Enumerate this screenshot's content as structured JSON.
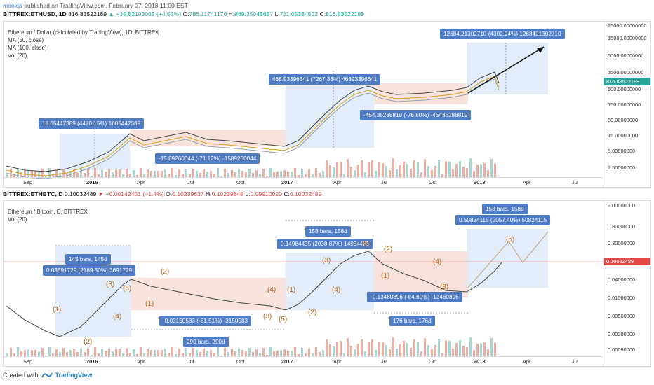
{
  "header": {
    "author": "monkia",
    "published_text": "published on TradingView.com, February 07, 2018 11:00 EST",
    "symbol": "BITTREX:ETHUSD, 1D",
    "last": "816.83522189",
    "change": "+35.52193069 (+4.55%)",
    "o_label": "O:",
    "o": "786.11741176",
    "h_label": "H:",
    "h": "869.25045687",
    "l_label": "L:",
    "l": "711.05384502",
    "c_label": "C:",
    "c": "816.83522189",
    "up_arrow": "▲"
  },
  "chart1": {
    "title": "Ethereum / Dollar (calculated by TradingView), 1D, BITTREX",
    "indicators": [
      "MA (50, close)",
      "MA (100, close)",
      "Vol (20)"
    ],
    "y_ticks": [
      "25000.00000000",
      "15000.00000000",
      "5000.00000000",
      "1500.00000000",
      "500.00000000",
      "150.00000000",
      "50.00000000",
      "15.00000000",
      "5.00000000",
      "1.50000000"
    ],
    "price_label": "816.83522189",
    "x_ticks": [
      "Sep",
      "2016",
      "Apr",
      "Jul",
      "Oct",
      "2017",
      "Apr",
      "Jul",
      "Oct",
      "2018",
      "Apr",
      "Jul"
    ],
    "annotations": [
      "12684.21302710 (4302.24%) 1268421302710",
      "468.93396641 (7267.33%) 46893396641",
      "-454.36288819 (-76.80%) -45436288819",
      "18.05447389 (4470.15%) 1805447389",
      "-15.89260044 (-71.12%) -1589260044"
    ],
    "colors": {
      "up_zone": "#dbe8f7",
      "down_zone": "#f5dcd3",
      "ma50": "#d4a017",
      "ma100": "#9aa0a6",
      "candle": "#555"
    }
  },
  "header2": {
    "symbol": "BITTREX:ETHBTC, D",
    "last": "0.10032489",
    "down_arrow": "▼",
    "change": "−0.00142451 (−1.4%)",
    "o_label": "O:",
    "o": "0.10239637",
    "h_label": "H:",
    "h": "0.10239848",
    "l_label": "L:",
    "l": "0.09910020",
    "c_label": "C:",
    "c": "0.10032489"
  },
  "chart2": {
    "title": "Ethereum / Bitcoin, D, BITTREX",
    "indicators": [
      "Vol (20)"
    ],
    "y_ticks": [
      "2.00000000",
      "0.80000000",
      "0.30000000",
      "0.10032489",
      "0.04000000",
      "0.01500000",
      "0.00500000",
      "0.00200000",
      "0.00080000"
    ],
    "price_label": "0.10032489",
    "x_ticks": [
      "Sep",
      "2016",
      "Apr",
      "Jul",
      "Oct",
      "2017",
      "Apr",
      "Jul",
      "Oct",
      "2018",
      "Apr",
      "Jul"
    ],
    "annotations": [
      "145 bars, 145d",
      "0.03691729 (2189.50%) 3691729",
      "-0.03150583 (-81.51%) -3150583",
      "290 bars, 290d",
      "158 bars, 158d",
      "0.14984435 (2038.87%) 14984435",
      "-0.13460896 (-84.60%) -13460896",
      "176 bars, 176d",
      "158 bars, 158d",
      "0.50824115 (2057.40%) 50824115"
    ],
    "waves": [
      "(1)",
      "(2)",
      "(3)",
      "(4)",
      "(5)",
      "(1)",
      "(2)",
      "(3)",
      "(4)",
      "(5)",
      "(1)",
      "(2)",
      "(3)",
      "(4)",
      "(5)",
      "(1)",
      "(2)",
      "(3)",
      "(4)",
      "(5)"
    ]
  },
  "footer": {
    "created_with": "Created with",
    "brand": "TradingView"
  }
}
